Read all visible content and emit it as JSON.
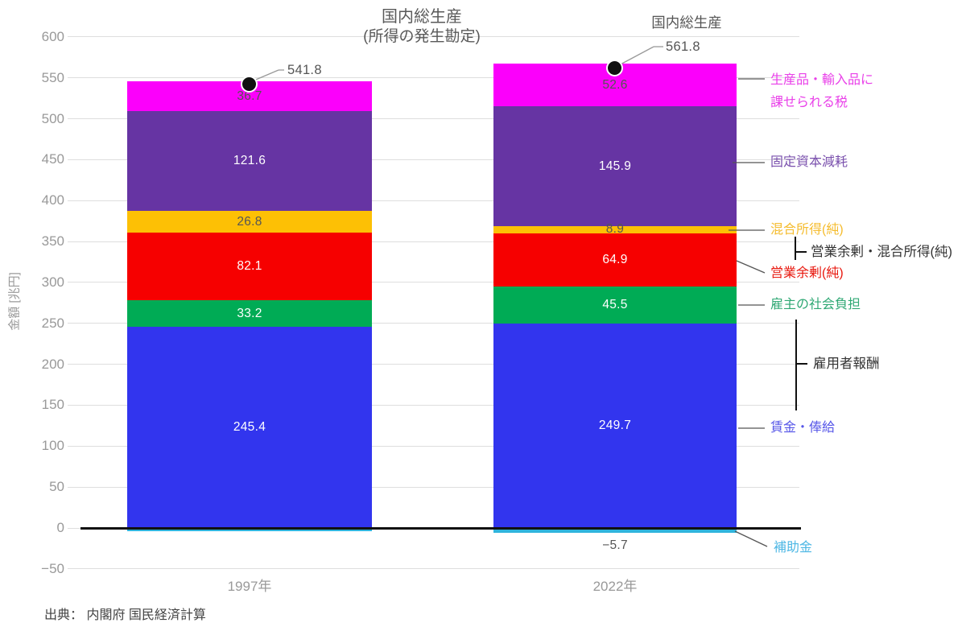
{
  "chart_data": {
    "type": "bar",
    "stacked": true,
    "title": "国内総生産",
    "subtitle": "(所得の発生勘定)",
    "xlabel": "",
    "ylabel": "金額 [兆円]",
    "ylim": [
      -50,
      600
    ],
    "ytick_step": 50,
    "ytick_labels": [
      "600",
      "550",
      "500",
      "450",
      "400",
      "350",
      "300",
      "250",
      "200",
      "150",
      "100",
      "50",
      "0",
      "−50"
    ],
    "grid": true,
    "legend_position": "right",
    "categories": [
      "1997年",
      "2022年"
    ],
    "series": [
      {
        "id": "wages",
        "name": "賃金・俸給",
        "values": [
          245.4,
          249.7
        ],
        "value_labels": [
          "245.4",
          "249.7"
        ],
        "color": "#3235ee",
        "label_color": "#ffffff"
      },
      {
        "id": "employer-social",
        "name": "雇主の社会負担",
        "values": [
          33.2,
          45.5
        ],
        "value_labels": [
          "33.2",
          "45.5"
        ],
        "color": "#00ab55",
        "label_color": "#ffffff"
      },
      {
        "id": "operating-surplus",
        "name": "営業余剰(純)",
        "values": [
          82.1,
          64.9
        ],
        "value_labels": [
          "82.1",
          "64.9"
        ],
        "color": "#f60000",
        "label_color": "#ffffff"
      },
      {
        "id": "mixed-income",
        "name": "混合所得(純)",
        "values": [
          26.8,
          8.9
        ],
        "value_labels": [
          "26.8",
          "8.9"
        ],
        "color": "#fdc005",
        "label_color": "#555555"
      },
      {
        "id": "cfc",
        "name": "固定資本減耗",
        "values": [
          121.6,
          145.9
        ],
        "value_labels": [
          "121.6",
          "145.9"
        ],
        "color": "#6634a3",
        "label_color": "#ffffff"
      },
      {
        "id": "taxes-on-products",
        "name": "生産品・輸入品に課せられる税",
        "values": [
          36.7,
          52.6
        ],
        "value_labels": [
          "36.7",
          "52.6"
        ],
        "color": "#fb00fb",
        "label_color": "#555555"
      },
      {
        "id": "subsidies",
        "name": "補助金",
        "values": [
          -4.0,
          -5.7
        ],
        "value_labels": [
          "",
          "−5.7"
        ],
        "color": "#30b4dc",
        "label_color": "#555555"
      }
    ],
    "totals": {
      "name": "国内総生産",
      "values": [
        541.8,
        561.8
      ],
      "labels": [
        "541.8",
        "561.8"
      ],
      "marker_color": "#111111"
    },
    "group_brackets": [
      {
        "label": "営業余剰・混合所得(純)",
        "members": [
          "混合所得(純)",
          "営業余剰(純)"
        ]
      },
      {
        "label": "雇用者報酬",
        "members": [
          "雇主の社会負担",
          "賃金・俸給"
        ]
      }
    ],
    "source": "出典： 内閣府 国民経済計算"
  },
  "legend": {
    "items": [
      {
        "id": "taxes-on-products",
        "lines": [
          "生産品・輸入品に",
          "課せられる税"
        ],
        "color": "#e93fe9"
      },
      {
        "id": "cfc",
        "lines": [
          "固定資本減耗"
        ],
        "color": "#7a50ad"
      },
      {
        "id": "mixed-income",
        "lines": [
          "混合所得(純)"
        ],
        "color": "#f5bc2e"
      },
      {
        "id": "os-mixed-group",
        "lines": [
          "営業余剰・混合所得(純)"
        ],
        "color": "#333333",
        "group": true
      },
      {
        "id": "operating-surplus",
        "lines": [
          "営業余剰(純)"
        ],
        "color": "#e8170d"
      },
      {
        "id": "employer-social",
        "lines": [
          "雇主の社会負担"
        ],
        "color": "#2fa874"
      },
      {
        "id": "compensation-group",
        "lines": [
          "雇用者報酬"
        ],
        "color": "#333333",
        "group": true
      },
      {
        "id": "wages",
        "lines": [
          "賃金・俸給"
        ],
        "color": "#5656e8"
      },
      {
        "id": "subsidies",
        "lines": [
          "補助金"
        ],
        "color": "#4db7e4"
      }
    ]
  }
}
